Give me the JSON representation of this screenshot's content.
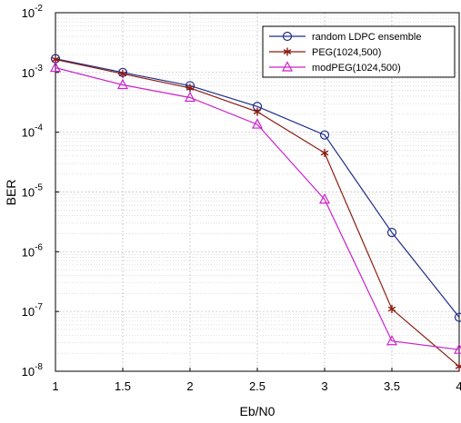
{
  "chart_data": {
    "type": "line",
    "title": "",
    "xlabel": "Eb/N0",
    "ylabel": "BER",
    "x": [
      1,
      1.5,
      2,
      2.5,
      3,
      3.5,
      4
    ],
    "xlim": [
      1,
      4
    ],
    "ylim": [
      1e-08,
      0.01
    ],
    "yscale": "log",
    "grid": true,
    "grid_minor": true,
    "legend_position": "top-right",
    "x_tick_labels": [
      "1",
      "1.5",
      "2",
      "2.5",
      "3",
      "3.5",
      "4"
    ],
    "y_tick_labels": [
      {
        "base": "10",
        "exp": "-8"
      },
      {
        "base": "10",
        "exp": "-7"
      },
      {
        "base": "10",
        "exp": "-6"
      },
      {
        "base": "10",
        "exp": "-5"
      },
      {
        "base": "10",
        "exp": "-4"
      },
      {
        "base": "10",
        "exp": "-3"
      },
      {
        "base": "10",
        "exp": "-2"
      }
    ],
    "series": [
      {
        "name": "random LDPC ensemble",
        "color": "#1f2d8a",
        "marker": "circle",
        "values": [
          0.0017,
          0.001,
          0.0006,
          0.00027,
          9e-05,
          2.1e-06,
          8e-08
        ]
      },
      {
        "name": "PEG(1024,500)",
        "color": "#8b1a10",
        "marker": "asterisk",
        "values": [
          0.00165,
          0.00095,
          0.00055,
          0.00022,
          4.5e-05,
          1.1e-07,
          1.2e-08
        ]
      },
      {
        "name": "modPEG(1024,500)",
        "color": "#cc22cc",
        "marker": "triangle",
        "values": [
          0.0012,
          0.00062,
          0.00038,
          0.000135,
          7.5e-06,
          3.2e-08,
          2.3e-08
        ]
      }
    ]
  }
}
